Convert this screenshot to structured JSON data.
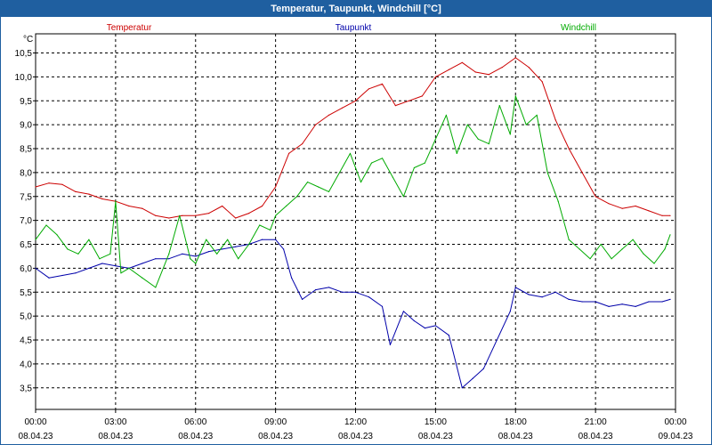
{
  "window": {
    "title": "Temperatur, Taupunkt, Windchill [°C]"
  },
  "chart_data": {
    "type": "line",
    "title": "Temperatur, Taupunkt, Windchill [°C]",
    "ylabel": "°C",
    "xlabel": "",
    "ylim": [
      3.05,
      10.9
    ],
    "xlim": [
      0,
      24
    ],
    "grid": true,
    "y_ticks": [
      "3,5",
      "4,0",
      "4,5",
      "5,0",
      "5,5",
      "6,0",
      "6,5",
      "7,0",
      "7,5",
      "8,0",
      "8,5",
      "9,0",
      "9,5",
      "10,0",
      "10,5"
    ],
    "y_tick_values": [
      3.5,
      4.0,
      4.5,
      5.0,
      5.5,
      6.0,
      6.5,
      7.0,
      7.5,
      8.0,
      8.5,
      9.0,
      9.5,
      10.0,
      10.5
    ],
    "x_ticks": [
      {
        "h": 0,
        "time": "00:00",
        "date": "08.04.23"
      },
      {
        "h": 3,
        "time": "03:00",
        "date": "08.04.23"
      },
      {
        "h": 6,
        "time": "06:00",
        "date": "08.04.23"
      },
      {
        "h": 9,
        "time": "09:00",
        "date": "08.04.23"
      },
      {
        "h": 12,
        "time": "12:00",
        "date": "08.04.23"
      },
      {
        "h": 15,
        "time": "15:00",
        "date": "08.04.23"
      },
      {
        "h": 18,
        "time": "18:00",
        "date": "08.04.23"
      },
      {
        "h": 21,
        "time": "21:00",
        "date": "08.04.23"
      },
      {
        "h": 24,
        "time": "00:00",
        "date": "09.04.23"
      }
    ],
    "series": [
      {
        "name": "Temperatur",
        "color": "#cc0000",
        "x": [
          0,
          0.5,
          1,
          1.5,
          2,
          2.5,
          3,
          3.5,
          4,
          4.5,
          5,
          5.5,
          6,
          6.5,
          7,
          7.5,
          8,
          8.5,
          9,
          9.5,
          10,
          10.5,
          11,
          11.5,
          12,
          12.5,
          13,
          13.5,
          14,
          14.5,
          15,
          15.5,
          16,
          16.5,
          17,
          17.5,
          18,
          18.5,
          19,
          19.5,
          20,
          20.5,
          21,
          21.5,
          22,
          22.5,
          23,
          23.5,
          23.8
        ],
        "values": [
          7.7,
          7.78,
          7.75,
          7.6,
          7.55,
          7.45,
          7.4,
          7.3,
          7.25,
          7.1,
          7.05,
          7.1,
          7.1,
          7.15,
          7.3,
          7.05,
          7.15,
          7.3,
          7.7,
          8.4,
          8.6,
          9.0,
          9.2,
          9.35,
          9.5,
          9.75,
          9.85,
          9.4,
          9.5,
          9.6,
          10.0,
          10.15,
          10.3,
          10.1,
          10.05,
          10.2,
          10.4,
          10.2,
          9.9,
          9.1,
          8.5,
          8.0,
          7.5,
          7.35,
          7.25,
          7.3,
          7.2,
          7.1,
          7.1
        ]
      },
      {
        "name": "Taupunkt",
        "color": "#0000aa",
        "x": [
          0,
          0.5,
          1,
          1.5,
          2,
          2.5,
          3,
          3.5,
          4,
          4.5,
          5,
          5.5,
          6,
          6.5,
          7,
          7.5,
          8,
          8.5,
          9,
          9.3,
          9.6,
          10,
          10.5,
          11,
          11.5,
          12,
          12.5,
          13,
          13.3,
          13.8,
          14.2,
          14.6,
          15,
          15.5,
          16,
          16.4,
          16.8,
          17.3,
          17.8,
          18,
          18.5,
          19,
          19.5,
          20,
          20.5,
          21,
          21.5,
          22,
          22.5,
          23,
          23.5,
          23.8
        ],
        "values": [
          6.0,
          5.8,
          5.85,
          5.9,
          6.0,
          6.1,
          6.05,
          6.0,
          6.1,
          6.2,
          6.2,
          6.3,
          6.25,
          6.35,
          6.4,
          6.45,
          6.5,
          6.6,
          6.6,
          6.4,
          5.8,
          5.35,
          5.55,
          5.6,
          5.5,
          5.5,
          5.4,
          5.2,
          4.4,
          5.1,
          4.9,
          4.75,
          4.8,
          4.6,
          3.5,
          3.7,
          3.9,
          4.5,
          5.1,
          5.6,
          5.45,
          5.4,
          5.5,
          5.35,
          5.3,
          5.3,
          5.2,
          5.25,
          5.2,
          5.3,
          5.3,
          5.35
        ]
      },
      {
        "name": "Windchill",
        "color": "#00aa00",
        "x": [
          0,
          0.4,
          0.8,
          1.2,
          1.6,
          2,
          2.4,
          2.8,
          3,
          3.2,
          3.5,
          4,
          4.5,
          5,
          5.4,
          5.8,
          6,
          6.4,
          6.8,
          7.2,
          7.6,
          8,
          8.4,
          8.8,
          9,
          9.4,
          9.8,
          10.2,
          10.6,
          11,
          11.4,
          11.8,
          12.2,
          12.6,
          13,
          13.4,
          13.8,
          14.2,
          14.6,
          15,
          15.4,
          15.8,
          16.2,
          16.6,
          17,
          17.4,
          17.8,
          18,
          18.4,
          18.8,
          19.2,
          19.6,
          20,
          20.4,
          20.8,
          21.2,
          21.6,
          22,
          22.4,
          22.8,
          23.2,
          23.6,
          23.8
        ],
        "values": [
          6.6,
          6.9,
          6.7,
          6.4,
          6.3,
          6.6,
          6.2,
          6.3,
          7.4,
          5.9,
          6.0,
          5.8,
          5.6,
          6.3,
          7.1,
          6.2,
          6.1,
          6.6,
          6.3,
          6.6,
          6.2,
          6.5,
          6.9,
          6.8,
          7.1,
          7.3,
          7.5,
          7.8,
          7.7,
          7.6,
          8.0,
          8.4,
          7.8,
          8.2,
          8.3,
          7.9,
          7.5,
          8.1,
          8.2,
          8.7,
          9.2,
          8.4,
          9.0,
          8.7,
          8.6,
          9.4,
          8.8,
          9.6,
          9.0,
          9.2,
          8.0,
          7.4,
          6.6,
          6.4,
          6.2,
          6.5,
          6.2,
          6.4,
          6.6,
          6.3,
          6.1,
          6.4,
          6.7
        ]
      }
    ]
  }
}
